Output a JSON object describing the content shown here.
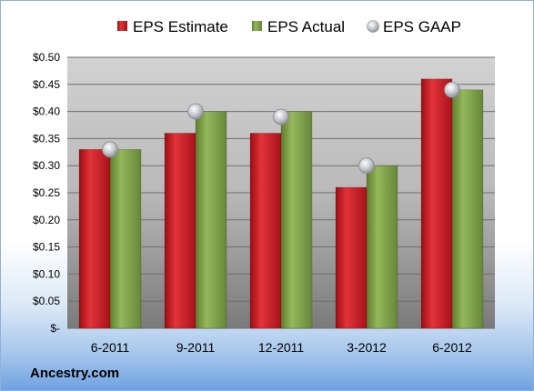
{
  "chart_data": {
    "type": "bar",
    "categories": [
      "6-2011",
      "9-2011",
      "12-2011",
      "3-2012",
      "6-2012"
    ],
    "series": [
      {
        "name": "EPS Estimate",
        "values": [
          0.33,
          0.36,
          0.36,
          0.26,
          0.46
        ],
        "color": "#c0161d"
      },
      {
        "name": "EPS Actual",
        "values": [
          0.33,
          0.4,
          0.4,
          0.3,
          0.44
        ],
        "color": "#7fa047"
      }
    ],
    "markers": {
      "name": "EPS GAAP",
      "values": [
        0.33,
        0.4,
        0.39,
        0.3,
        0.44
      ],
      "color": "#b8bcc2"
    },
    "ylim": [
      0,
      0.5
    ],
    "yticks": [
      0,
      0.05,
      0.1,
      0.15,
      0.2,
      0.25,
      0.3,
      0.35,
      0.4,
      0.45,
      0.5
    ],
    "ytick_labels": [
      "$-",
      "$0.05",
      "$0.10",
      "$0.15",
      "$0.20",
      "$0.25",
      "$0.30",
      "$0.35",
      "$0.40",
      "$0.45",
      "$0.50"
    ],
    "grid": true,
    "legend_position": "top"
  },
  "branding": {
    "text": "Ancestry.com"
  }
}
